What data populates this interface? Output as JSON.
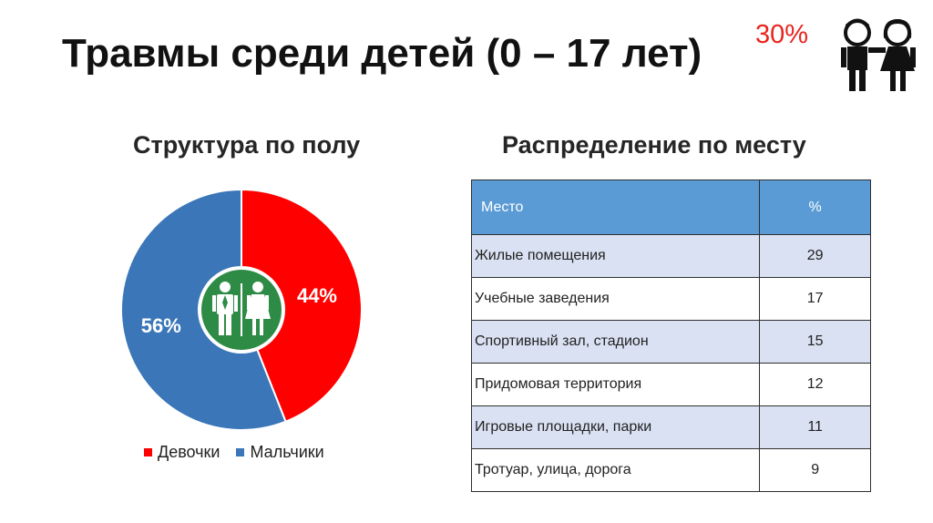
{
  "title": "Травмы среди детей (0 – 17 лет)",
  "badge": "30%",
  "icons": {
    "kids": "boy-girl-icon",
    "center": "man-woman-icon"
  },
  "colors": {
    "girls": "#ff0000",
    "boys": "#3a76b8",
    "center": "#2e8b46",
    "header": "#5b9bd5",
    "row_alt": "#d9e1f2",
    "badge": "#e8251e"
  },
  "pie_section": {
    "title": "Структура по полу"
  },
  "table_section": {
    "title": "Распределение по месту"
  },
  "chart_data": [
    {
      "type": "pie",
      "title": "Структура по полу",
      "categories": [
        "Девочки",
        "Мальчики"
      ],
      "values": [
        44,
        56
      ],
      "labels": [
        "44%",
        "56%"
      ],
      "colors": [
        "#ff0000",
        "#3a76b8"
      ],
      "legend_position": "bottom"
    },
    {
      "type": "table",
      "title": "Распределение по месту",
      "columns": [
        "Место",
        "%"
      ],
      "rows": [
        [
          "Жилые помещения",
          "29"
        ],
        [
          "Учебные заведения",
          "17"
        ],
        [
          "Спортивный зал, стадион",
          "15"
        ],
        [
          "Придомовая территория",
          "12"
        ],
        [
          "Игровые площадки, парки",
          "11"
        ],
        [
          "Тротуар, улица,  дорога",
          "9"
        ]
      ]
    }
  ]
}
